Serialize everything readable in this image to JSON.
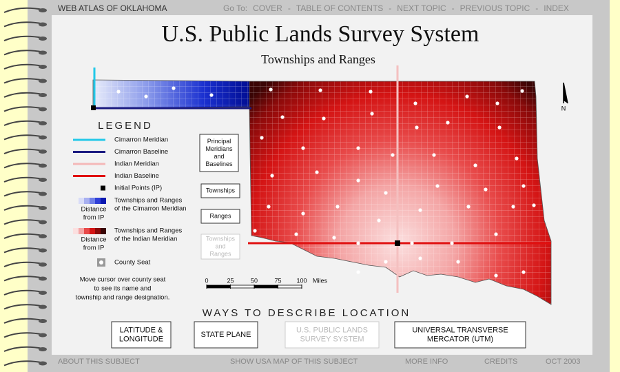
{
  "header": {
    "site": "WEB ATLAS OF OKLAHOMA",
    "goto_label": "Go To:",
    "separator": "-",
    "links": [
      "COVER",
      "TABLE OF CONTENTS",
      "NEXT TOPIC",
      "PREVIOUS TOPIC",
      "INDEX"
    ]
  },
  "title": "U.S. Public Lands Survey System",
  "subtitle": "Townships and Ranges",
  "legend": {
    "title": "LEGEND",
    "items": [
      {
        "label": "Cimarron Meridian",
        "color": "#22c8e8"
      },
      {
        "label": "Cimarron Baseline",
        "color": "#1a1a80"
      },
      {
        "label": "Indian Meridian",
        "color": "#f4b8b8"
      },
      {
        "label": "Indian Baseline",
        "color": "#e01010"
      },
      {
        "label": "Initial Points (IP)",
        "color": "#000000"
      }
    ],
    "ramps": [
      {
        "label": [
          "Townships and Ranges",
          "of the Cimarron Meridian"
        ],
        "caption": [
          "Distance",
          "from IP"
        ],
        "colors": [
          "#d8dcf8",
          "#a8b0f0",
          "#7080e8",
          "#3040d8",
          "#0a18b0"
        ]
      },
      {
        "label": [
          "Townships and Ranges",
          "of the Indian Meridian"
        ],
        "caption": [
          "Distance",
          "from IP"
        ],
        "colors": [
          "#fbe0e0",
          "#f4a5a5",
          "#e84a4a",
          "#d41414",
          "#8a0a0a",
          "#3a0505"
        ]
      }
    ],
    "county_seat": "County Seat"
  },
  "hint": [
    "Move cursor over county seat",
    "to see its name and",
    "township and range designation."
  ],
  "layers": [
    {
      "label": [
        "Principal",
        "Meridians",
        "and",
        "Baselines"
      ],
      "enabled": true
    },
    {
      "label": [
        "Townships"
      ],
      "enabled": true
    },
    {
      "label": [
        "Ranges"
      ],
      "enabled": true
    },
    {
      "label": [
        "Townships",
        "and",
        "Ranges"
      ],
      "enabled": false
    }
  ],
  "scale": {
    "ticks": [
      0,
      25,
      50,
      75,
      100
    ],
    "unit": "Miles"
  },
  "north": "N",
  "section_title": "WAYS TO DESCRIBE LOCATION",
  "location_buttons": [
    {
      "label": [
        "LATITUDE &",
        "LONGITUDE"
      ],
      "enabled": true
    },
    {
      "label": [
        "STATE PLANE"
      ],
      "enabled": true
    },
    {
      "label": [
        "U.S. PUBLIC LANDS",
        "SURVEY SYSTEM"
      ],
      "enabled": false
    },
    {
      "label": [
        "UNIVERSAL TRANSVERSE",
        "MERCATOR (UTM)"
      ],
      "enabled": true
    }
  ],
  "footer": [
    "ABOUT THIS SUBJECT",
    "SHOW USA MAP OF THIS SUBJECT",
    "MORE INFO",
    "CREDITS",
    "OCT 2003"
  ]
}
